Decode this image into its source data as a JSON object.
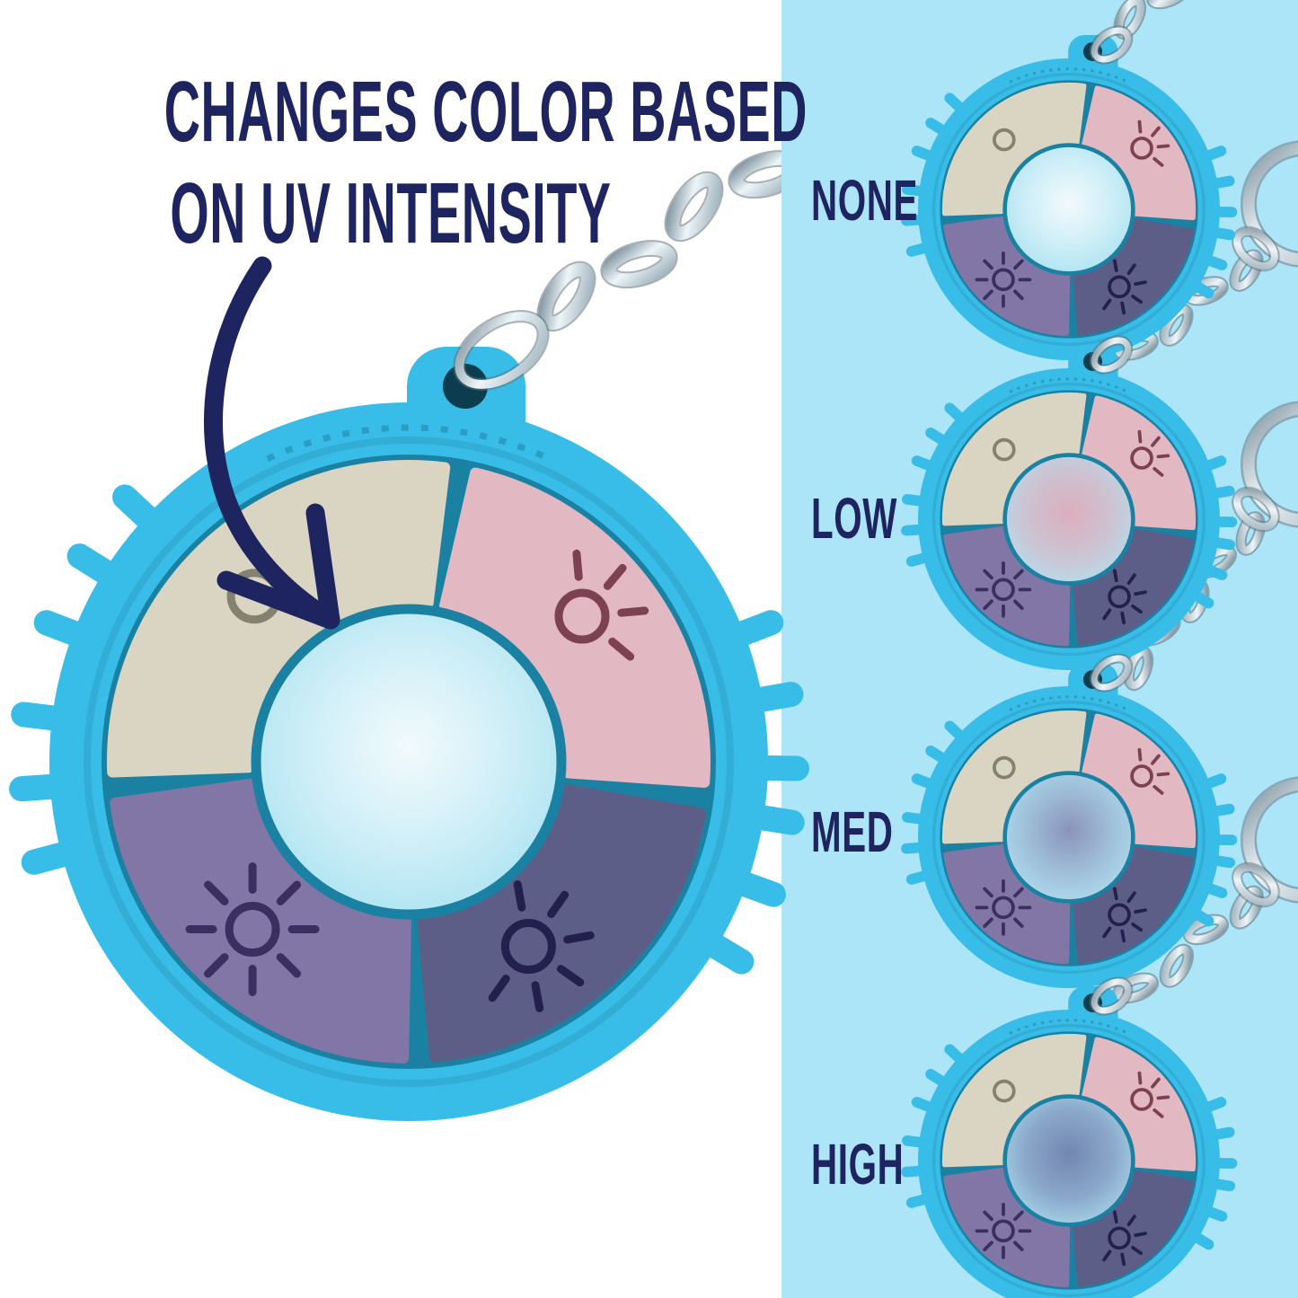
{
  "title": {
    "line1": "CHANGES COLOR BASED",
    "line2": "ON UV INTENSITY"
  },
  "legend": {
    "items": [
      {
        "label": "NONE",
        "state": "none"
      },
      {
        "label": "LOW",
        "state": "low"
      },
      {
        "label": "MED",
        "state": "med"
      },
      {
        "label": "HIGH",
        "state": "high"
      }
    ]
  },
  "icons": {
    "segments": [
      "circle-outline-uv-none-icon",
      "sun-few-rays-uv-low-icon",
      "sun-full-rays-uv-high-icon",
      "sun-med-rays-uv-med-icon"
    ]
  },
  "colors": {
    "background_left": "#ffffff",
    "band": "#ace5f7",
    "navy": "#1e2460",
    "body_blue": "#38bde8",
    "groove_teal": "#1b81a2",
    "segment_cream": "#d9d5c2",
    "segment_pink": "#e2b8c3",
    "segment_purple": "#8276a7",
    "segment_slate": "#5d5e88",
    "hole_dark": "#0b3d4e",
    "icon_on_cream": "#83816f",
    "icon_on_pink": "#7c4152",
    "icon_on_purple": "#3a2f60",
    "icon_on_slate": "#23204e",
    "metal_dark": "#7e929d",
    "metal_light": "#eef5f8",
    "metal_mid": "#9fb2bc",
    "metal_outline": "#5f707b",
    "states": {
      "none": {
        "core": "#f2fafc",
        "mid": "#cdeef7",
        "rim": "#a8e2f1"
      },
      "low": {
        "core": "#dcaebd",
        "mid": "#ccc3d2",
        "rim": "#b3dfee"
      },
      "med": {
        "core": "#8b93bc",
        "mid": "#9fc0d9",
        "rim": "#b0def0"
      },
      "high": {
        "core": "#7386b0",
        "mid": "#8aa8ca",
        "rim": "#a9d9ec"
      }
    }
  }
}
